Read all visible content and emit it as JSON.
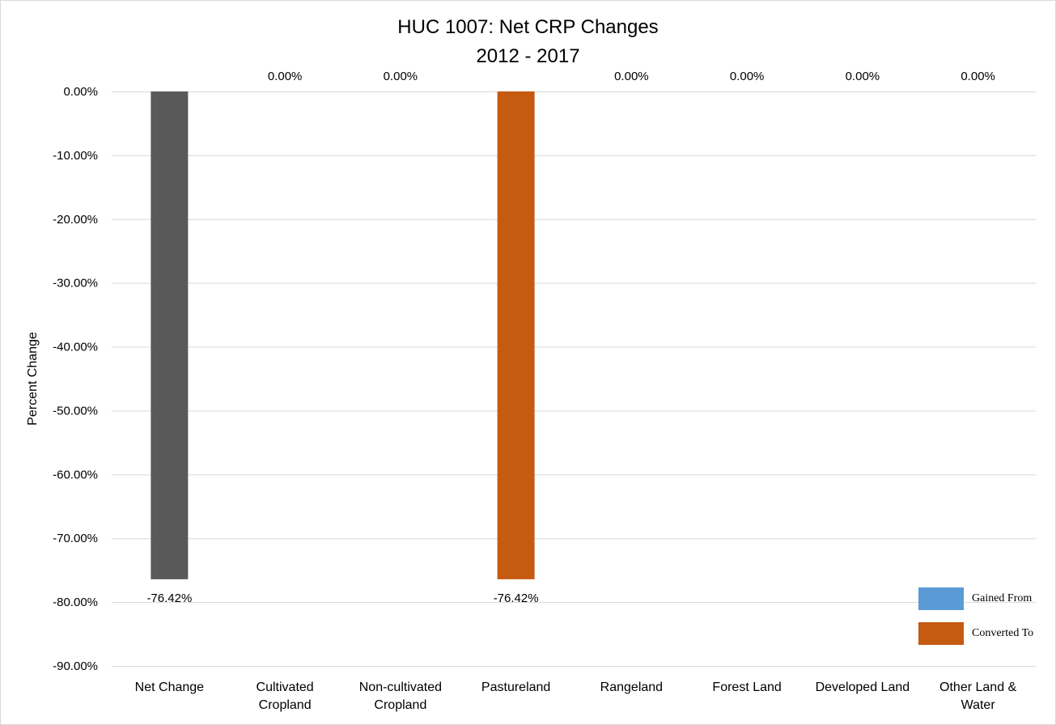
{
  "chart_data": {
    "type": "bar",
    "title": "HUC 1007: Net CRP Changes",
    "subtitle": "2012 - 2017",
    "ylabel": "Percent Change",
    "xlabel": "",
    "ylim": [
      -90,
      0
    ],
    "yticks": [
      0,
      -10,
      -20,
      -30,
      -40,
      -50,
      -60,
      -70,
      -80,
      -90
    ],
    "ytick_labels": [
      "0.00%",
      "-10.00%",
      "-20.00%",
      "-30.00%",
      "-40.00%",
      "-50.00%",
      "-60.00%",
      "-70.00%",
      "-80.00%",
      "-90.00%"
    ],
    "grid": true,
    "legend_position": "bottom-right",
    "categories": [
      [
        "Net Change"
      ],
      [
        "Cultivated",
        "Cropland"
      ],
      [
        "Non-cultivated",
        "Cropland"
      ],
      [
        "Pastureland"
      ],
      [
        "Rangeland"
      ],
      [
        "Forest Land"
      ],
      [
        "Developed Land"
      ],
      [
        "Other Land &",
        "Water"
      ]
    ],
    "values": [
      -76.42,
      0,
      0,
      -76.42,
      0,
      0,
      0,
      0
    ],
    "data_labels": [
      "-76.42%",
      "0.00%",
      "0.00%",
      "-76.42%",
      "0.00%",
      "0.00%",
      "0.00%",
      "0.00%"
    ],
    "bar_colors": [
      "#595959",
      "#5b9bd5",
      "#5b9bd5",
      "#c55a11",
      "#5b9bd5",
      "#5b9bd5",
      "#5b9bd5",
      "#5b9bd5"
    ],
    "legend": [
      {
        "name": "Gained From",
        "color": "#5b9bd5"
      },
      {
        "name": "Converted To",
        "color": "#c55a11"
      }
    ],
    "gridline_color": "#d9d9d9"
  }
}
